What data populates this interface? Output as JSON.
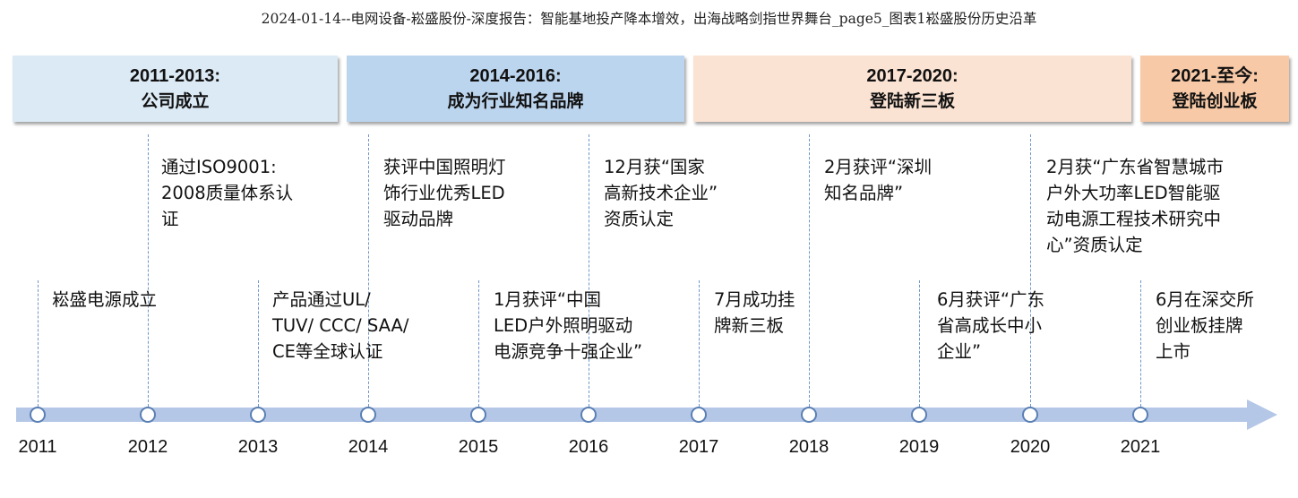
{
  "title": "2024-01-14--电网设备-崧盛股份-深度报告：智能基地投产降本增效，出海战略剑指世界舞台_page5_图表1崧盛股份历史沿革",
  "colors": {
    "phase1": "#dceaf6",
    "phase2": "#bcd5ee",
    "phase3": "#fbe3d3",
    "phase4": "#f7c9a7",
    "axis": "#b4c7e7",
    "node_border": "#5a7fb3",
    "dashed": "#6f95c8"
  },
  "phases": [
    {
      "range": "2011-2013:",
      "name": "公司成立"
    },
    {
      "range": "2014-2016:",
      "name": "成为行业知名品牌"
    },
    {
      "range": "2017-2020:",
      "name": "登陆新三板"
    },
    {
      "range": "2021-至今:",
      "name": "登陆创业板"
    }
  ],
  "years": [
    "2011",
    "2012",
    "2013",
    "2014",
    "2015",
    "2016",
    "2017",
    "2018",
    "2019",
    "2020",
    "2021"
  ],
  "upper_events": [
    {
      "year": "2012",
      "text": "通过ISO9001:\n2008质量体系认\n证"
    },
    {
      "year": "2014",
      "text": "获评中国照明灯\n饰行业优秀LED\n驱动品牌"
    },
    {
      "year": "2016",
      "text": "12月获“国家\n高新技术企业”\n资质认定"
    },
    {
      "year": "2018",
      "text": "2月获评“深圳\n知名品牌”"
    },
    {
      "year": "2020",
      "text": "2月获“广东省智慧城市\n户外大功率LED智能驱\n动电源工程技术研究中\n心”资质认定"
    }
  ],
  "lower_events": [
    {
      "year": "2011",
      "text": "崧盛电源成立"
    },
    {
      "year": "2013",
      "text": "产品通过UL/\nTUV/ CCC/ SAA/\nCE等全球认证"
    },
    {
      "year": "2015",
      "text": "1月获评“中国\nLED户外照明驱动\n电源竞争十强企业”"
    },
    {
      "year": "2017",
      "text": "7月成功挂\n牌新三板"
    },
    {
      "year": "2019",
      "text": "6月获评“广东\n省高成长中小\n企业”"
    },
    {
      "year": "2021",
      "text": "6月在深交所\n创业板挂牌\n上市"
    }
  ]
}
